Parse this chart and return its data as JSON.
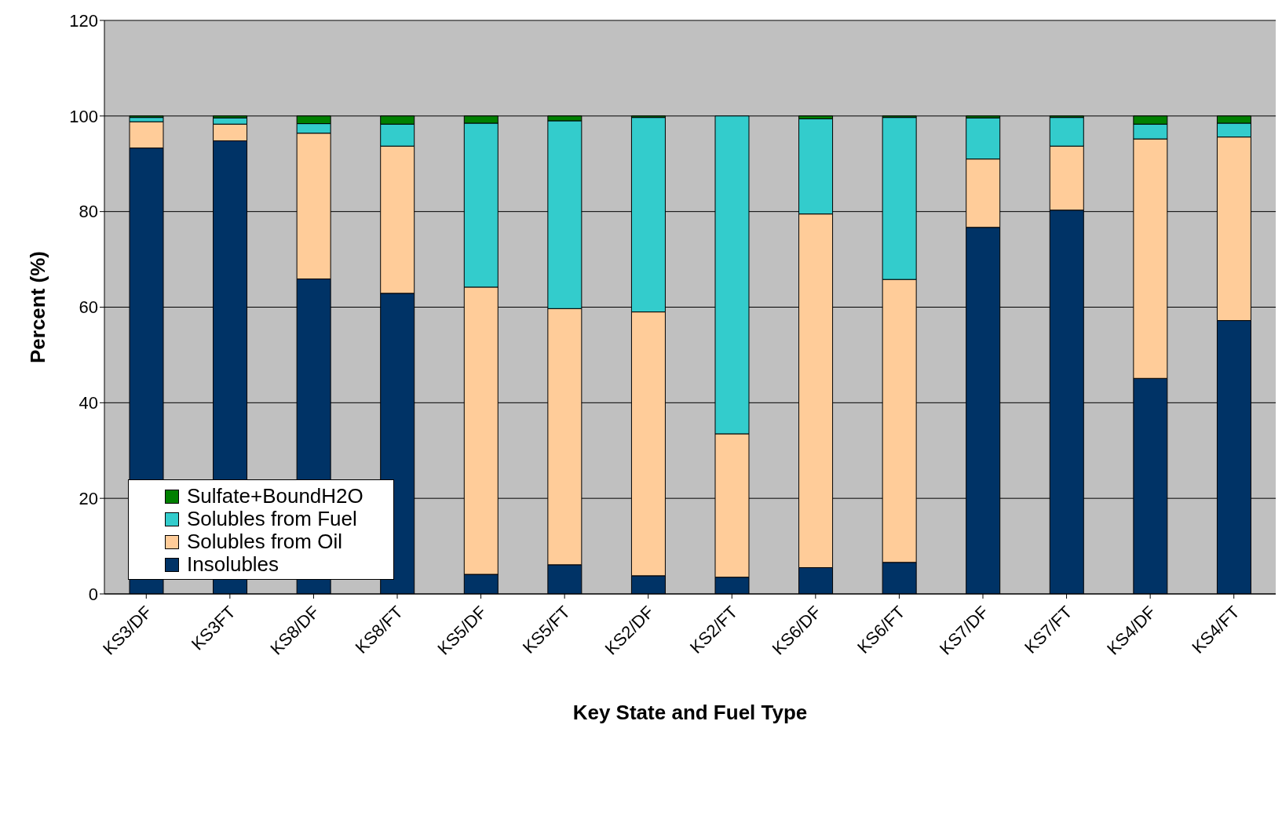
{
  "chart_data": {
    "type": "bar",
    "stacked": true,
    "xlabel": "Key State and Fuel Type",
    "ylabel": "Percent (%)",
    "categories": [
      "KS3/DF",
      "KS3FT",
      "KS8/DF",
      "KS8/FT",
      "KS5/DF",
      "KS5/FT",
      "KS2/DF",
      "KS2/FT",
      "KS6/DF",
      "KS6/FT",
      "KS7/DF",
      "KS7/FT",
      "KS4/DF",
      "KS4/FT"
    ],
    "series": [
      {
        "name": "Insolubles",
        "color": "#003366",
        "values": [
          93.3,
          94.8,
          65.9,
          62.9,
          4.1,
          6.1,
          3.8,
          3.5,
          5.5,
          6.6,
          76.7,
          80.3,
          45.1,
          57.2
        ]
      },
      {
        "name": "Solubles from Oil",
        "color": "#ffcc99",
        "values": [
          5.5,
          3.5,
          30.5,
          30.8,
          60.1,
          53.6,
          55.2,
          30.0,
          74.0,
          59.2,
          14.3,
          13.4,
          50.1,
          38.4
        ]
      },
      {
        "name": "Solubles from Fuel",
        "color": "#33cccc",
        "values": [
          0.9,
          1.3,
          2.0,
          4.6,
          34.3,
          39.3,
          40.7,
          66.5,
          19.9,
          33.9,
          8.6,
          6.0,
          3.1,
          2.9
        ]
      },
      {
        "name": "Sulfate+BoundH2O",
        "color": "#008000",
        "values": [
          0.3,
          0.4,
          1.6,
          1.7,
          1.5,
          1.0,
          0.3,
          0,
          0.6,
          0.3,
          0.4,
          0.3,
          1.7,
          1.5
        ]
      }
    ],
    "ylim": [
      0,
      120
    ],
    "yticks": [
      0,
      20,
      40,
      60,
      80,
      100,
      120
    ],
    "grid": "y",
    "legend": "bottom left"
  }
}
